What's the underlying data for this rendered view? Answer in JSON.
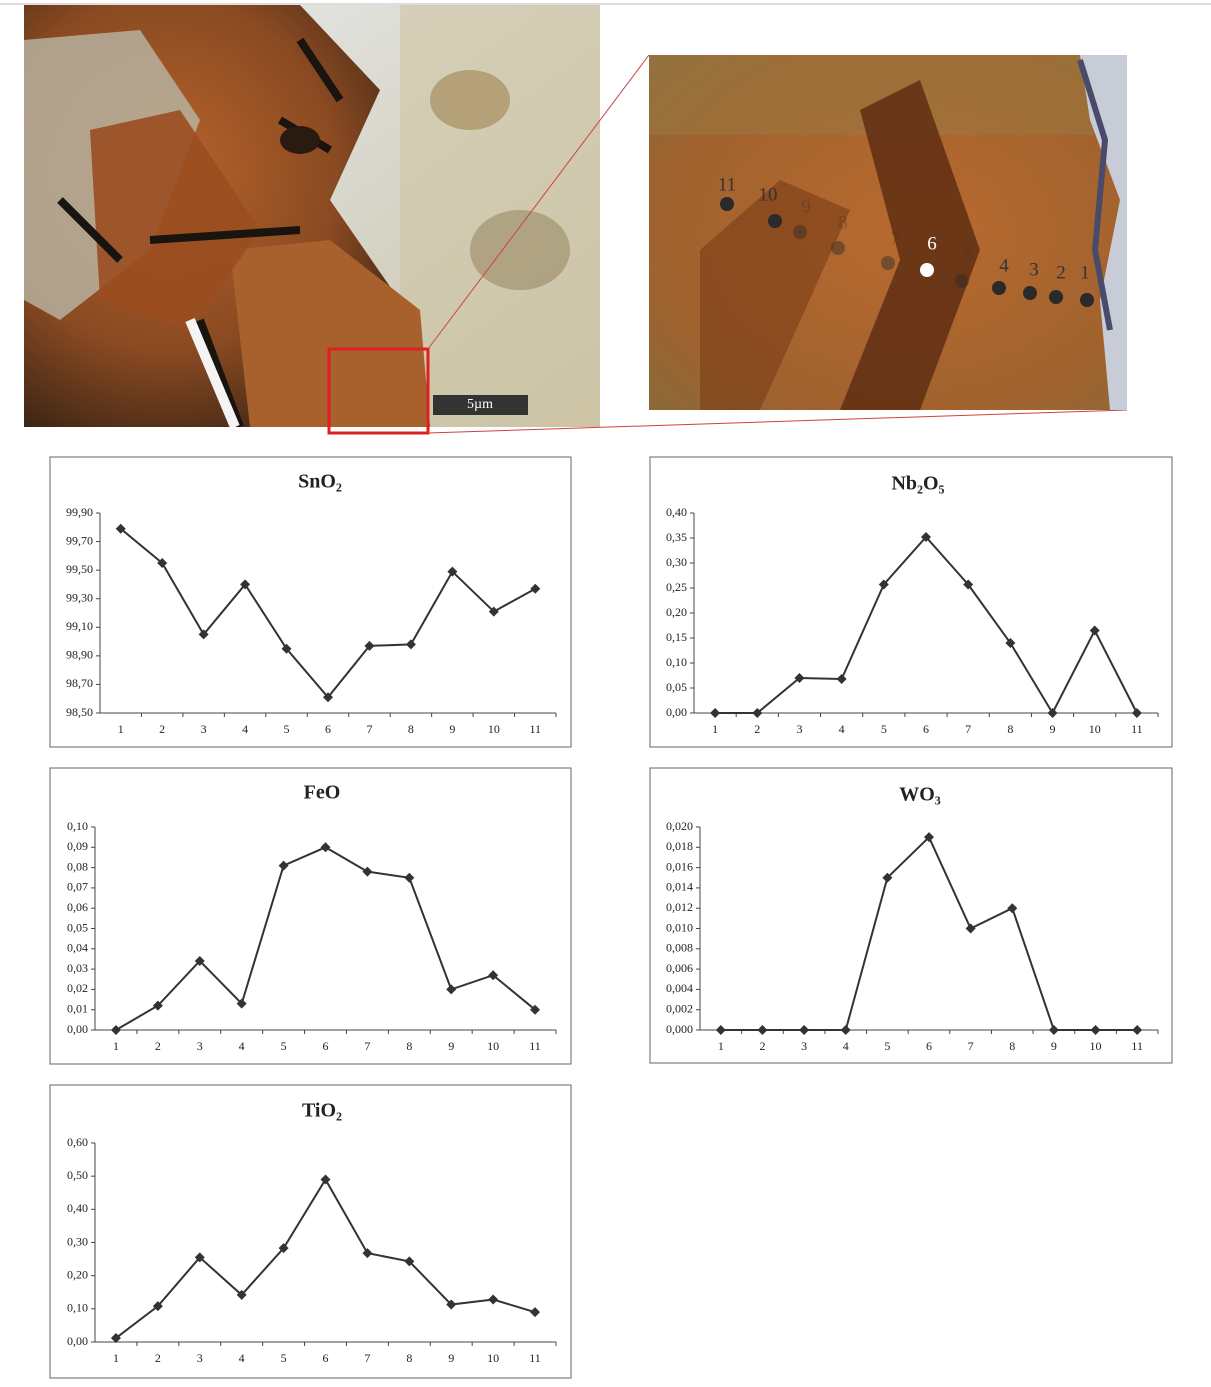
{
  "image": {
    "scale_label": "5µm",
    "point_labels": [
      "1",
      "2",
      "3",
      "4",
      "5",
      "6",
      "7",
      "8",
      "9",
      "10",
      "11"
    ]
  },
  "chart_data": [
    {
      "type": "line",
      "title": "SnO₂",
      "color": "#333333",
      "categories": [
        "1",
        "2",
        "3",
        "4",
        "5",
        "6",
        "7",
        "8",
        "9",
        "10",
        "11"
      ],
      "values": [
        99.79,
        99.55,
        99.05,
        99.4,
        98.95,
        98.61,
        98.97,
        98.98,
        99.49,
        99.21,
        99.37
      ],
      "ylim": [
        98.5,
        99.9
      ],
      "yticks": [
        {
          "value": 98.5,
          "label": "98,50"
        },
        {
          "value": 98.7,
          "label": "98,70"
        },
        {
          "value": 98.9,
          "label": "98,90"
        },
        {
          "value": 99.1,
          "label": "99,10"
        },
        {
          "value": 99.3,
          "label": "99,30"
        },
        {
          "value": 99.5,
          "label": "99,50"
        },
        {
          "value": 99.7,
          "label": "99,70"
        },
        {
          "value": 99.9,
          "label": "99,90"
        }
      ]
    },
    {
      "type": "line",
      "title": "Nb₂O₅",
      "color": "#333333",
      "categories": [
        "1",
        "2",
        "3",
        "4",
        "5",
        "6",
        "7",
        "8",
        "9",
        "10",
        "11"
      ],
      "values": [
        0,
        0,
        0.07,
        0.068,
        0.257,
        0.352,
        0.257,
        0.14,
        0,
        0.165,
        0
      ],
      "ylim": [
        0,
        0.4
      ],
      "yticks": [
        {
          "value": 0,
          "label": "0,00"
        },
        {
          "value": 0.05,
          "label": "0,05"
        },
        {
          "value": 0.1,
          "label": "0,10"
        },
        {
          "value": 0.15,
          "label": "0,15"
        },
        {
          "value": 0.2,
          "label": "0,20"
        },
        {
          "value": 0.25,
          "label": "0,25"
        },
        {
          "value": 0.3,
          "label": "0,30"
        },
        {
          "value": 0.35,
          "label": "0,35"
        },
        {
          "value": 0.4,
          "label": "0,40"
        }
      ]
    },
    {
      "type": "line",
      "title": "FeO",
      "color": "#333333",
      "categories": [
        "1",
        "2",
        "3",
        "4",
        "5",
        "6",
        "7",
        "8",
        "9",
        "10",
        "11"
      ],
      "values": [
        0,
        0.012,
        0.034,
        0.013,
        0.081,
        0.09,
        0.078,
        0.075,
        0.02,
        0.027,
        0.01
      ],
      "ylim": [
        0,
        0.1
      ],
      "yticks": [
        {
          "value": 0,
          "label": "0,00"
        },
        {
          "value": 0.01,
          "label": "0,01"
        },
        {
          "value": 0.02,
          "label": "0,02"
        },
        {
          "value": 0.03,
          "label": "0,03"
        },
        {
          "value": 0.04,
          "label": "0,04"
        },
        {
          "value": 0.05,
          "label": "0,05"
        },
        {
          "value": 0.06,
          "label": "0,06"
        },
        {
          "value": 0.07,
          "label": "0,07"
        },
        {
          "value": 0.08,
          "label": "0,08"
        },
        {
          "value": 0.09,
          "label": "0,09"
        },
        {
          "value": 0.1,
          "label": "0,10"
        }
      ]
    },
    {
      "type": "line",
      "title": "WO₃",
      "color": "#333333",
      "categories": [
        "1",
        "2",
        "3",
        "4",
        "5",
        "6",
        "7",
        "8",
        "9",
        "10",
        "11"
      ],
      "values": [
        0,
        0,
        0,
        0,
        0.015,
        0.019,
        0.01,
        0.012,
        0,
        0,
        0
      ],
      "ylim": [
        0,
        0.02
      ],
      "yticks": [
        {
          "value": 0,
          "label": "0,000"
        },
        {
          "value": 0.002,
          "label": "0,002"
        },
        {
          "value": 0.004,
          "label": "0,004"
        },
        {
          "value": 0.006,
          "label": "0,006"
        },
        {
          "value": 0.008,
          "label": "0,008"
        },
        {
          "value": 0.01,
          "label": "0,010"
        },
        {
          "value": 0.012,
          "label": "0,012"
        },
        {
          "value": 0.014,
          "label": "0,014"
        },
        {
          "value": 0.016,
          "label": "0,016"
        },
        {
          "value": 0.018,
          "label": "0,018"
        },
        {
          "value": 0.02,
          "label": "0,020"
        }
      ]
    },
    {
      "type": "line",
      "title": "TiO₂",
      "color": "#333333",
      "categories": [
        "1",
        "2",
        "3",
        "4",
        "5",
        "6",
        "7",
        "8",
        "9",
        "10",
        "11"
      ],
      "values": [
        0.012,
        0.108,
        0.255,
        0.142,
        0.283,
        0.49,
        0.268,
        0.243,
        0.113,
        0.128,
        0.09
      ],
      "ylim": [
        0,
        0.6
      ],
      "yticks": [
        {
          "value": 0,
          "label": "0,00"
        },
        {
          "value": 0.1,
          "label": "0,10"
        },
        {
          "value": 0.2,
          "label": "0,20"
        },
        {
          "value": 0.3,
          "label": "0,30"
        },
        {
          "value": 0.4,
          "label": "0,40"
        },
        {
          "value": 0.5,
          "label": "0,50"
        },
        {
          "value": 0.6,
          "label": "0,60"
        }
      ]
    }
  ]
}
